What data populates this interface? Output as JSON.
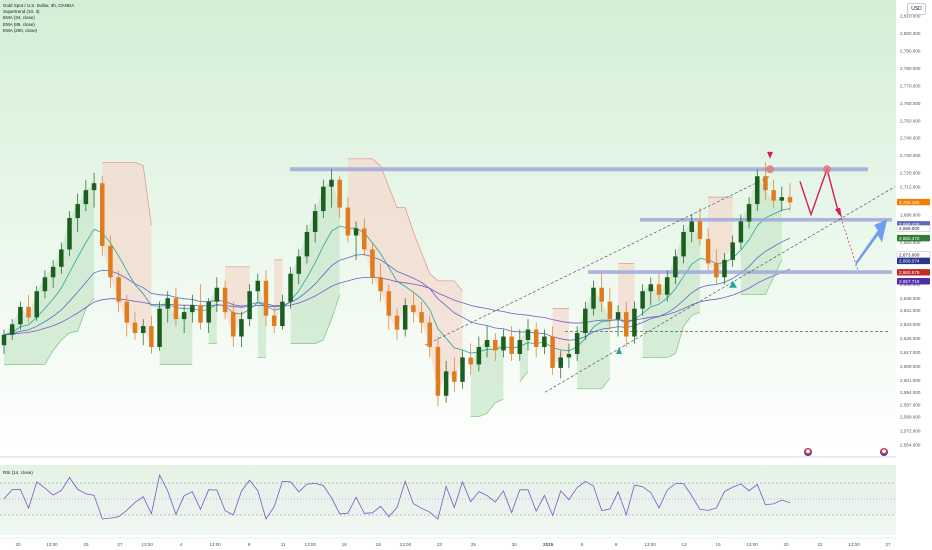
{
  "header": {
    "symbol_line": "Gold Spot / U.S. Dollar, 4h, OANDA",
    "indicators": [
      "Supertrend (10, 3)",
      "EMA (34, close)",
      "EMA (89, close)",
      "EMA (200, close)"
    ],
    "currency_button": "USD",
    "rsi_label": "RSI (14, close)"
  },
  "colors": {
    "bull_candle": "#1b5e20",
    "bear_candle": "#e07b1f",
    "up_zone": "#c8e6c9",
    "down_zone": "#f3d9cc",
    "resistance_band": "#9fa8da",
    "arrow_red": "#d81b60",
    "arrow_blue": "#5c8df0",
    "ema_fast": "#26a69a",
    "ema_mid": "#5c6bc0",
    "ema_slow": "#7e57c2"
  },
  "chart_data": {
    "type": "candlestick",
    "price_axis": {
      "ticks": [
        "2,810.000",
        "2,800.000",
        "2,790.000",
        "2,780.000",
        "2,770.000",
        "2,760.000",
        "2,750.000",
        "2,740.000",
        "2,730.000",
        "2,720.000",
        "2,712.000",
        "2,704.000",
        "2,696.000",
        "2,688.000",
        "2,680.000",
        "2,672.000",
        "2,664.000",
        "2,656.000",
        "2,648.000",
        "2,641.000",
        "2,633.000",
        "2,625.000",
        "2,617.000",
        "2,609.000",
        "2,601.000",
        "2,594.000",
        "2,587.000",
        "2,580.000",
        "2,572.000",
        "2,564.000"
      ],
      "tick_values": [
        2810,
        2800,
        2790,
        2780,
        2770,
        2760,
        2750,
        2740,
        2730,
        2720,
        2712,
        2704,
        2696,
        2688,
        2680,
        2672,
        2664,
        2656,
        2648,
        2641,
        2633,
        2625,
        2617,
        2609,
        2601,
        2594,
        2587,
        2580,
        2572,
        2564
      ],
      "ylim": [
        2558,
        2818
      ]
    },
    "badges": [
      {
        "label": "2,703.150",
        "value": 2703.15,
        "color": "#f57c00"
      },
      {
        "label": "2,690.420",
        "value": 2690.42,
        "color": "#5c6bc0"
      },
      {
        "label": "2,688.000",
        "value": 2688.0,
        "color": "#ffffff"
      },
      {
        "label": "2,682.472",
        "value": 2682.47,
        "color": "#2e7d32"
      },
      {
        "label": "2,673.000",
        "value": 2673.0,
        "color": "#ffffff"
      },
      {
        "label": "2,669.374",
        "value": 2669.37,
        "color": "#283593"
      },
      {
        "label": "2,662.879",
        "value": 2662.88,
        "color": "#c62828"
      },
      {
        "label": "2,657.716",
        "value": 2657.72,
        "color": "#512da8"
      }
    ],
    "time_axis": {
      "labels": [
        "20",
        "13:00",
        "25",
        "27",
        "13:00",
        "4",
        "13:00",
        "9",
        "11",
        "13:00",
        "16",
        "18",
        "13:00",
        "23",
        "25",
        "30",
        "2025",
        "6",
        "8",
        "13:00",
        "13",
        "15",
        "13:00",
        "20",
        "22",
        "13:00",
        "27"
      ],
      "positions": [
        0,
        2.5,
        5,
        7.5,
        9.5,
        12,
        14.5,
        17,
        19.5,
        21.5,
        24,
        26.5,
        28.5,
        31,
        33.5,
        36.5,
        39,
        41.5,
        44,
        46.5,
        49,
        51.5,
        54,
        56.5,
        59,
        61.5,
        64
      ]
    },
    "candles_ohlc": [
      [
        2621,
        2630,
        2616,
        2627
      ],
      [
        2627,
        2636,
        2624,
        2633
      ],
      [
        2633,
        2646,
        2630,
        2643
      ],
      [
        2643,
        2650,
        2634,
        2637
      ],
      [
        2637,
        2655,
        2635,
        2652
      ],
      [
        2652,
        2664,
        2648,
        2660
      ],
      [
        2660,
        2670,
        2654,
        2666
      ],
      [
        2666,
        2680,
        2662,
        2676
      ],
      [
        2676,
        2698,
        2672,
        2694
      ],
      [
        2694,
        2708,
        2686,
        2702
      ],
      [
        2702,
        2716,
        2698,
        2710
      ],
      [
        2710,
        2720,
        2700,
        2714
      ],
      [
        2714,
        2718,
        2672,
        2678
      ],
      [
        2678,
        2684,
        2654,
        2660
      ],
      [
        2660,
        2664,
        2640,
        2646
      ],
      [
        2646,
        2650,
        2626,
        2634
      ],
      [
        2634,
        2640,
        2624,
        2628
      ],
      [
        2628,
        2636,
        2621,
        2632
      ],
      [
        2632,
        2638,
        2616,
        2620
      ],
      [
        2620,
        2646,
        2618,
        2642
      ],
      [
        2642,
        2652,
        2634,
        2648
      ],
      [
        2648,
        2654,
        2632,
        2636
      ],
      [
        2636,
        2644,
        2628,
        2640
      ],
      [
        2640,
        2650,
        2634,
        2644
      ],
      [
        2644,
        2656,
        2630,
        2634
      ],
      [
        2634,
        2648,
        2628,
        2646
      ],
      [
        2646,
        2660,
        2640,
        2654
      ],
      [
        2654,
        2658,
        2636,
        2640
      ],
      [
        2640,
        2646,
        2620,
        2626
      ],
      [
        2626,
        2640,
        2620,
        2636
      ],
      [
        2636,
        2656,
        2632,
        2652
      ],
      [
        2652,
        2662,
        2646,
        2658
      ],
      [
        2658,
        2664,
        2632,
        2638
      ],
      [
        2638,
        2644,
        2628,
        2632
      ],
      [
        2632,
        2650,
        2630,
        2646
      ],
      [
        2646,
        2666,
        2642,
        2662
      ],
      [
        2662,
        2676,
        2656,
        2672
      ],
      [
        2672,
        2690,
        2668,
        2686
      ],
      [
        2686,
        2702,
        2680,
        2698
      ],
      [
        2698,
        2716,
        2694,
        2712
      ],
      [
        2712,
        2722,
        2700,
        2716
      ],
      [
        2716,
        2718,
        2694,
        2700
      ],
      [
        2700,
        2706,
        2680,
        2684
      ],
      [
        2684,
        2692,
        2670,
        2688
      ],
      [
        2688,
        2694,
        2672,
        2676
      ],
      [
        2676,
        2680,
        2656,
        2660
      ],
      [
        2660,
        2668,
        2646,
        2652
      ],
      [
        2652,
        2656,
        2630,
        2638
      ],
      [
        2638,
        2642,
        2624,
        2630
      ],
      [
        2630,
        2648,
        2626,
        2644
      ],
      [
        2644,
        2652,
        2634,
        2640
      ],
      [
        2640,
        2646,
        2628,
        2634
      ],
      [
        2634,
        2638,
        2614,
        2620
      ],
      [
        2620,
        2626,
        2586,
        2592
      ],
      [
        2592,
        2612,
        2588,
        2606
      ],
      [
        2606,
        2614,
        2594,
        2600
      ],
      [
        2600,
        2618,
        2596,
        2614
      ],
      [
        2614,
        2622,
        2604,
        2610
      ],
      [
        2610,
        2626,
        2606,
        2620
      ],
      [
        2620,
        2632,
        2614,
        2624
      ],
      [
        2624,
        2628,
        2612,
        2618
      ],
      [
        2618,
        2630,
        2614,
        2626
      ],
      [
        2626,
        2632,
        2612,
        2616
      ],
      [
        2616,
        2630,
        2612,
        2624
      ],
      [
        2624,
        2636,
        2618,
        2630
      ],
      [
        2630,
        2634,
        2614,
        2620
      ],
      [
        2620,
        2630,
        2616,
        2626
      ],
      [
        2626,
        2632,
        2604,
        2608
      ],
      [
        2608,
        2618,
        2602,
        2614
      ],
      [
        2614,
        2622,
        2608,
        2616
      ],
      [
        2616,
        2632,
        2612,
        2628
      ],
      [
        2628,
        2646,
        2624,
        2642
      ],
      [
        2642,
        2658,
        2638,
        2654
      ],
      [
        2654,
        2662,
        2640,
        2646
      ],
      [
        2646,
        2654,
        2630,
        2636
      ],
      [
        2636,
        2644,
        2626,
        2640
      ],
      [
        2640,
        2646,
        2620,
        2626
      ],
      [
        2626,
        2646,
        2622,
        2642
      ],
      [
        2642,
        2656,
        2638,
        2652
      ],
      [
        2652,
        2660,
        2644,
        2656
      ],
      [
        2656,
        2662,
        2646,
        2650
      ],
      [
        2650,
        2664,
        2646,
        2660
      ],
      [
        2660,
        2676,
        2656,
        2672
      ],
      [
        2672,
        2690,
        2668,
        2686
      ],
      [
        2686,
        2696,
        2680,
        2692
      ],
      [
        2692,
        2700,
        2678,
        2682
      ],
      [
        2682,
        2688,
        2664,
        2668
      ],
      [
        2668,
        2676,
        2656,
        2660
      ],
      [
        2660,
        2674,
        2656,
        2670
      ],
      [
        2670,
        2684,
        2666,
        2680
      ],
      [
        2680,
        2696,
        2676,
        2692
      ],
      [
        2692,
        2706,
        2688,
        2702
      ],
      [
        2702,
        2722,
        2698,
        2718
      ],
      [
        2718,
        2726,
        2704,
        2710
      ],
      [
        2710,
        2716,
        2700,
        2704
      ],
      [
        2704,
        2712,
        2698,
        2706
      ],
      [
        2706,
        2714,
        2698,
        2703
      ]
    ],
    "annotations": {
      "resistance_band": 2722,
      "support_band_1": 2693,
      "support_band_2": 2663,
      "dotted_level": 2629
    }
  }
}
